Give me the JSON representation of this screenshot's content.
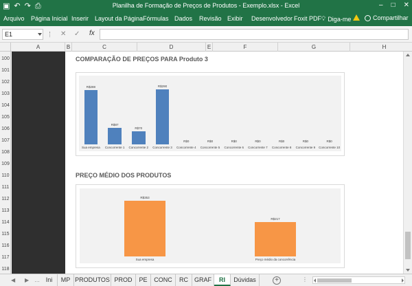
{
  "window": {
    "title": "Planilha de Formação de Preços de Produtos - Exemplo.xlsx - Excel"
  },
  "quick_access": {
    "save_icon": "save-icon",
    "undo_icon": "undo-icon",
    "redo_icon": "redo-icon",
    "preview_icon": "print-preview-icon"
  },
  "ribbon": {
    "tabs": [
      "Arquivo",
      "Página Inicial",
      "Inserir",
      "Layout da Página",
      "Fórmulas",
      "Dados",
      "Revisão",
      "Exibir",
      "Desenvolvedor",
      "Foxit PDF"
    ],
    "tell_me": "Diga-me",
    "share": "Compartilhar"
  },
  "formula_bar": {
    "name_box": "E1",
    "cancel": "✕",
    "enter": "✓",
    "fx": "fx",
    "value": ""
  },
  "columns": [
    "A",
    "B",
    "C",
    "D",
    "E",
    "F",
    "G",
    "H"
  ],
  "rows": [
    "100",
    "101",
    "102",
    "103",
    "104",
    "105",
    "106",
    "107",
    "108",
    "109",
    "110",
    "111",
    "112",
    "113",
    "114",
    "115",
    "116",
    "117",
    "118"
  ],
  "sections": {
    "chart1_title": "COMPARAÇÃO DE PREÇOS PARA Produto 3",
    "chart2_title": "PREÇO MÉDIO DOS PRODUTOS"
  },
  "chart_data": [
    {
      "type": "bar",
      "title": "",
      "categories": [
        "Sua empresa",
        "Concorrente 1",
        "Concorrente 2",
        "Concorrente 3",
        "Concorrente 4",
        "Concorrente 5",
        "Concorrente 6",
        "Concorrente 7",
        "Concorrente 8",
        "Concorrente 9",
        "Concorrente 10"
      ],
      "values": [
        288,
        87,
        70,
        290,
        0,
        0,
        0,
        0,
        0,
        0,
        0
      ],
      "labels": [
        "R$288",
        "R$87",
        "R$70",
        "R$290",
        "R$0",
        "R$0",
        "R$0",
        "R$0",
        "R$0",
        "R$0",
        "R$0"
      ],
      "ylim": [
        0,
        320
      ],
      "color": "#4f81bd",
      "grid": false
    },
    {
      "type": "bar",
      "title": "",
      "categories": [
        "Sua empresa",
        "Preço médio da concorrência"
      ],
      "values": [
        353,
        217
      ],
      "labels": [
        "R$353",
        "R$217"
      ],
      "ylim": [
        0,
        380
      ],
      "color": "#f79646",
      "grid": false
    }
  ],
  "sheet_tabs": [
    "Ini",
    "MP",
    "PRODUTOS",
    "PROD",
    "PE",
    "CONC",
    "RC",
    "GRAF",
    "RI",
    "Dúvidas"
  ],
  "active_sheet": "RI"
}
